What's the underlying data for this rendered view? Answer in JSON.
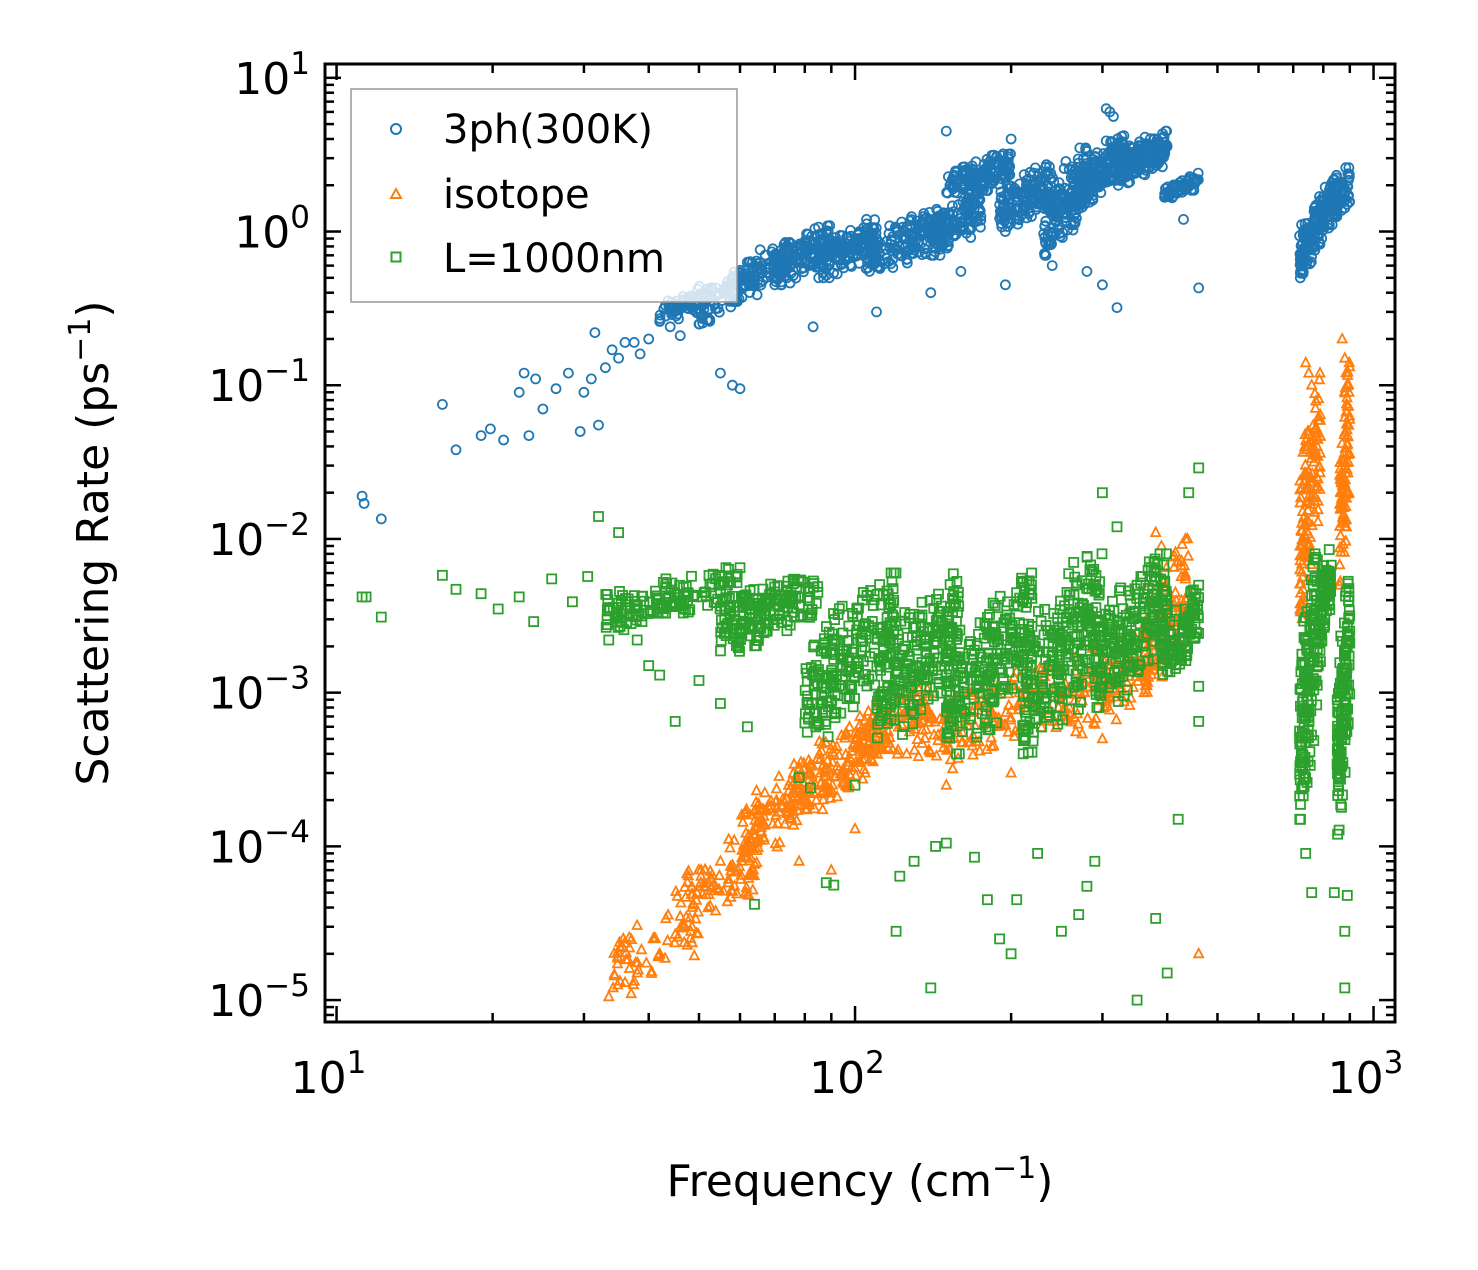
{
  "chart_data": {
    "type": "scatter",
    "title": "",
    "xlabel": "Frequency (cm",
    "xlabel_sup": "−1",
    "xlabel_end": ")",
    "ylabel": "Scattering Rate (ps",
    "ylabel_sup": "−1",
    "ylabel_end": ")",
    "xscale": "log",
    "yscale": "log",
    "xlim": [
      9.5,
      1100
    ],
    "ylim": [
      7.2e-06,
      12.3
    ],
    "xticks": [
      {
        "value": 10,
        "base": "10",
        "exp": "1"
      },
      {
        "value": 100,
        "base": "10",
        "exp": "2"
      },
      {
        "value": 1000,
        "base": "10",
        "exp": "3"
      }
    ],
    "yticks": [
      {
        "value": 10,
        "base": "10",
        "exp": "1"
      },
      {
        "value": 1,
        "base": "10",
        "exp": "0"
      },
      {
        "value": 0.1,
        "base": "10",
        "exp": "−1"
      },
      {
        "value": 0.01,
        "base": "10",
        "exp": "−2"
      },
      {
        "value": 0.001,
        "base": "10",
        "exp": "−3"
      },
      {
        "value": 0.0001,
        "base": "10",
        "exp": "−4"
      },
      {
        "value": 1e-05,
        "base": "10",
        "exp": "−5"
      }
    ],
    "legend_position": "top-left",
    "series": [
      {
        "name": "3ph(300K)",
        "marker": "circle",
        "color": "#1f77b4",
        "points": [
          [
            11.2,
            0.019
          ],
          [
            11.3,
            0.017
          ],
          [
            12.2,
            0.0135
          ],
          [
            16.0,
            0.075
          ],
          [
            17.0,
            0.038
          ],
          [
            19.0,
            0.047
          ],
          [
            19.8,
            0.052
          ],
          [
            21.0,
            0.044
          ],
          [
            22.5,
            0.09
          ],
          [
            23.0,
            0.12
          ],
          [
            23.5,
            0.047
          ],
          [
            24.2,
            0.11
          ],
          [
            25.0,
            0.07
          ],
          [
            26.5,
            0.095
          ],
          [
            28.0,
            0.12
          ],
          [
            29.5,
            0.05
          ],
          [
            30.0,
            0.09
          ],
          [
            31.0,
            0.11
          ],
          [
            31.5,
            0.22
          ],
          [
            32.0,
            0.055
          ],
          [
            33.0,
            0.13
          ],
          [
            34.0,
            0.17
          ],
          [
            35.0,
            0.15
          ],
          [
            36.0,
            0.19
          ],
          [
            37.5,
            0.19
          ],
          [
            38.5,
            0.16
          ],
          [
            40.0,
            0.2
          ],
          [
            42.0,
            0.26
          ],
          [
            44.0,
            0.24
          ],
          [
            46.0,
            0.21
          ],
          [
            50.0,
            0.25
          ],
          [
            55.0,
            0.12
          ],
          [
            58.0,
            0.1
          ],
          [
            60.0,
            0.095
          ],
          [
            83.0,
            0.24
          ],
          [
            110.0,
            0.3
          ],
          [
            140.0,
            0.4
          ],
          [
            160.0,
            0.55
          ],
          [
            195.0,
            0.45
          ],
          [
            240.0,
            0.6
          ],
          [
            280.0,
            0.55
          ],
          [
            300.0,
            0.45
          ],
          [
            320.0,
            0.32
          ],
          [
            400.0,
            1.8
          ],
          [
            430.0,
            1.2
          ],
          [
            460.0,
            0.43
          ],
          [
            305.0,
            6.3
          ],
          [
            310.0,
            6.0
          ],
          [
            315.0,
            5.6
          ],
          [
            150.0,
            4.5
          ],
          [
            200.0,
            4.0
          ]
        ],
        "bands": [
          {
            "x": [
              42,
              52
            ],
            "y": [
              0.25,
              0.45
            ],
            "n": 70
          },
          {
            "x": [
              50,
              60
            ],
            "y": [
              0.25,
              0.55
            ],
            "n": 60
          },
          {
            "x": [
              58,
              75
            ],
            "y": [
              0.35,
              0.85
            ],
            "n": 120
          },
          {
            "x": [
              70,
              90
            ],
            "y": [
              0.45,
              1.1
            ],
            "n": 130
          },
          {
            "x": [
              85,
              110
            ],
            "y": [
              0.5,
              1.2
            ],
            "n": 140
          },
          {
            "x": [
              105,
              150
            ],
            "y": [
              0.55,
              1.4
            ],
            "n": 170
          },
          {
            "x": [
              140,
              175
            ],
            "y": [
              0.7,
              1.8
            ],
            "n": 130
          },
          {
            "x": [
              150,
              200
            ],
            "y": [
              1.6,
              3.2
            ],
            "n": 150
          },
          {
            "x": [
              190,
              240
            ],
            "y": [
              1.0,
              2.8
            ],
            "n": 150
          },
          {
            "x": [
              230,
              280
            ],
            "y": [
              0.7,
              3.5
            ],
            "n": 170
          },
          {
            "x": [
              270,
              330
            ],
            "y": [
              1.5,
              4.2
            ],
            "n": 180
          },
          {
            "x": [
              320,
              400
            ],
            "y": [
              2.0,
              4.5
            ],
            "n": 170
          },
          {
            "x": [
              395,
              460
            ],
            "y": [
              1.6,
              2.4
            ],
            "n": 60
          },
          {
            "x": [
              720,
              800
            ],
            "y": [
              0.5,
              1.7
            ],
            "n": 120
          },
          {
            "x": [
              790,
              900
            ],
            "y": [
              1.0,
              2.6
            ],
            "n": 120
          }
        ]
      },
      {
        "name": "isotope",
        "marker": "triangle",
        "color": "#ff7f0e",
        "points": [
          [
            33.5,
            1.05e-05
          ],
          [
            36.0,
            1.3e-05
          ],
          [
            37.0,
            1.1e-05
          ],
          [
            38.0,
            1.5e-05
          ],
          [
            42.0,
            2e-05
          ],
          [
            46.0,
            3.5e-05
          ],
          [
            50.0,
            5.5e-05
          ],
          [
            55.0,
            8e-05
          ],
          [
            65.0,
            0.00011
          ],
          [
            75.0,
            0.00015
          ],
          [
            78.0,
            8e-05
          ],
          [
            90.0,
            7e-05
          ],
          [
            100.0,
            0.00013
          ],
          [
            150.0,
            0.00025
          ],
          [
            200.0,
            0.0003
          ],
          [
            300.0,
            0.0005
          ],
          [
            380.0,
            0.011
          ],
          [
            390.0,
            0.009
          ],
          [
            440.0,
            0.0045
          ],
          [
            460.0,
            2e-05
          ],
          [
            740.0,
            0.14
          ],
          [
            750.0,
            0.12
          ],
          [
            760.0,
            0.1
          ],
          [
            870.0,
            0.2
          ],
          [
            880.0,
            0.15
          ]
        ],
        "bands": [
          {
            "x": [
              34,
              50
            ],
            "y": [
              1.2e-05,
              4e-05
            ],
            "n": 60
          },
          {
            "x": [
              45,
              65
            ],
            "y": [
              3e-05,
              0.00012
            ],
            "n": 90
          },
          {
            "x": [
              60,
              80
            ],
            "y": [
              8e-05,
              0.00035
            ],
            "n": 100
          },
          {
            "x": [
              75,
              110
            ],
            "y": [
              0.00015,
              0.0007
            ],
            "n": 140
          },
          {
            "x": [
              100,
              140
            ],
            "y": [
              0.0003,
              0.0012
            ],
            "n": 120
          },
          {
            "x": [
              130,
              250
            ],
            "y": [
              0.0003,
              0.0015
            ],
            "n": 150
          },
          {
            "x": [
              250,
              380
            ],
            "y": [
              0.0005,
              0.003
            ],
            "n": 130
          },
          {
            "x": [
              360,
              440
            ],
            "y": [
              0.001,
              0.01
            ],
            "n": 100
          },
          {
            "x": [
              720,
              790
            ],
            "y": [
              0.003,
              0.12
            ],
            "n": 140
          },
          {
            "x": [
              860,
              900
            ],
            "y": [
              0.005,
              0.18
            ],
            "n": 100
          }
        ]
      },
      {
        "name": "L=1000nm",
        "marker": "square",
        "color": "#2ca02c",
        "points": [
          [
            11.2,
            0.0042
          ],
          [
            11.4,
            0.0042
          ],
          [
            12.2,
            0.0031
          ],
          [
            16.0,
            0.0058
          ],
          [
            17.0,
            0.0047
          ],
          [
            19.0,
            0.0044
          ],
          [
            20.5,
            0.0035
          ],
          [
            22.5,
            0.0042
          ],
          [
            24.0,
            0.0029
          ],
          [
            26.0,
            0.0055
          ],
          [
            28.5,
            0.0039
          ],
          [
            30.5,
            0.0057
          ],
          [
            32.0,
            0.014
          ],
          [
            33.5,
            0.0022
          ],
          [
            35.0,
            0.011
          ],
          [
            38.0,
            0.0022
          ],
          [
            40.0,
            0.0015
          ],
          [
            42.0,
            0.0013
          ],
          [
            45.0,
            0.00065
          ],
          [
            50.0,
            0.0012
          ],
          [
            55.0,
            0.00085
          ],
          [
            62.0,
            0.0006
          ],
          [
            64.0,
            4.2e-05
          ],
          [
            78.0,
            0.00028
          ],
          [
            82.0,
            0.00024
          ],
          [
            88.0,
            5.8e-05
          ],
          [
            91.0,
            5.6e-05
          ],
          [
            100.0,
            0.00025
          ],
          [
            120.0,
            2.8e-05
          ],
          [
            122.0,
            6.4e-05
          ],
          [
            130.0,
            8e-05
          ],
          [
            140.0,
            1.2e-05
          ],
          [
            143.0,
            0.0001
          ],
          [
            150.0,
            0.000105
          ],
          [
            170.0,
            8.5e-05
          ],
          [
            180.0,
            4.5e-05
          ],
          [
            190.0,
            2.5e-05
          ],
          [
            200.0,
            2e-05
          ],
          [
            205.0,
            4.5e-05
          ],
          [
            225.0,
            9e-05
          ],
          [
            250.0,
            2.8e-05
          ],
          [
            270.0,
            3.6e-05
          ],
          [
            280.0,
            5.5e-05
          ],
          [
            290.0,
            8e-05
          ],
          [
            300.0,
            0.02
          ],
          [
            320.0,
            0.012
          ],
          [
            350.0,
            1e-05
          ],
          [
            380.0,
            3.4e-05
          ],
          [
            400.0,
            1.5e-05
          ],
          [
            420.0,
            0.00015
          ],
          [
            440.0,
            0.02
          ],
          [
            460.0,
            0.029
          ],
          [
            460.0,
            0.00065
          ],
          [
            460.0,
            0.0011
          ],
          [
            740.0,
            9e-05
          ],
          [
            760.0,
            5e-05
          ],
          [
            880.0,
            1.2e-05
          ],
          [
            890.0,
            4.8e-05
          ],
          [
            880.0,
            2.8e-05
          ],
          [
            840.0,
            5e-05
          ]
        ],
        "bands": [
          {
            "x": [
              33,
              60
            ],
            "y": [
              0.0025,
              0.0065
            ],
            "n": 150
          },
          {
            "x": [
              55,
              85
            ],
            "y": [
              0.0018,
              0.0065
            ],
            "n": 180
          },
          {
            "x": [
              80,
              120
            ],
            "y": [
              0.0005,
              0.006
            ],
            "n": 220
          },
          {
            "x": [
              110,
              160
            ],
            "y": [
              0.0005,
              0.006
            ],
            "n": 220
          },
          {
            "x": [
              150,
              220
            ],
            "y": [
              0.0004,
              0.006
            ],
            "n": 240
          },
          {
            "x": [
              210,
              300
            ],
            "y": [
              0.0004,
              0.008
            ],
            "n": 240
          },
          {
            "x": [
              290,
              400
            ],
            "y": [
              0.0008,
              0.008
            ],
            "n": 220
          },
          {
            "x": [
              390,
              460
            ],
            "y": [
              0.0012,
              0.005
            ],
            "n": 100
          },
          {
            "x": [
              720,
              780
            ],
            "y": [
              0.00015,
              0.008
            ],
            "n": 160
          },
          {
            "x": [
              780,
              830
            ],
            "y": [
              0.0015,
              0.011
            ],
            "n": 80
          },
          {
            "x": [
              850,
              900
            ],
            "y": [
              0.00012,
              0.0065
            ],
            "n": 140
          }
        ]
      }
    ]
  }
}
